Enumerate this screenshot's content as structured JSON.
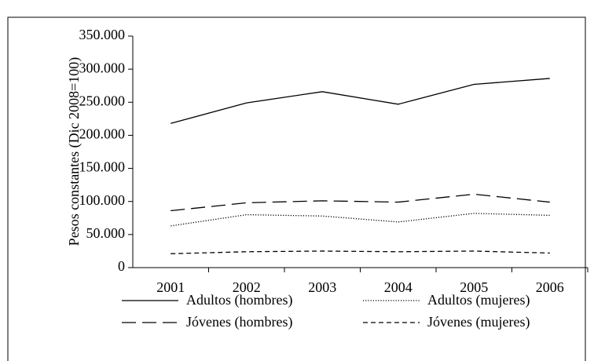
{
  "chart_data": {
    "type": "line",
    "y_label": "Pesos constantes (Dic 2008=100)",
    "categories": [
      "2001",
      "2002",
      "2003",
      "2004",
      "2005",
      "2006"
    ],
    "series": [
      {
        "name": "Adultos (hombres)",
        "color": "#000000",
        "dash": "solid",
        "values": [
          218000,
          249000,
          266000,
          247000,
          277000,
          286000
        ]
      },
      {
        "name": "Adultos (mujeres)",
        "color": "#000000",
        "dash": "dotted",
        "values": [
          63000,
          80000,
          78000,
          69000,
          82000,
          79000
        ]
      },
      {
        "name": "Jóvenes (hombres)",
        "color": "#000000",
        "dash": "long-dash",
        "values": [
          86000,
          98000,
          101000,
          99000,
          111000,
          99000
        ]
      },
      {
        "name": "Jóvenes (mujeres)",
        "color": "#000000",
        "dash": "short-dash",
        "values": [
          21000,
          24000,
          25000,
          24000,
          25000,
          22000
        ]
      }
    ],
    "ylim": [
      0,
      350000
    ],
    "yticks": [
      0,
      {
        "value": 50000,
        "label": "50.000"
      },
      {
        "value": 100000,
        "label": "100.000"
      },
      {
        "value": 150000,
        "label": "150.000"
      },
      {
        "value": 200000,
        "label": "200.000"
      },
      {
        "value": 250000,
        "label": "250.000"
      },
      {
        "value": 300000,
        "label": "300.000"
      },
      {
        "value": 350000,
        "label": "350.000"
      }
    ],
    "grid": false,
    "legend": "bottom"
  }
}
